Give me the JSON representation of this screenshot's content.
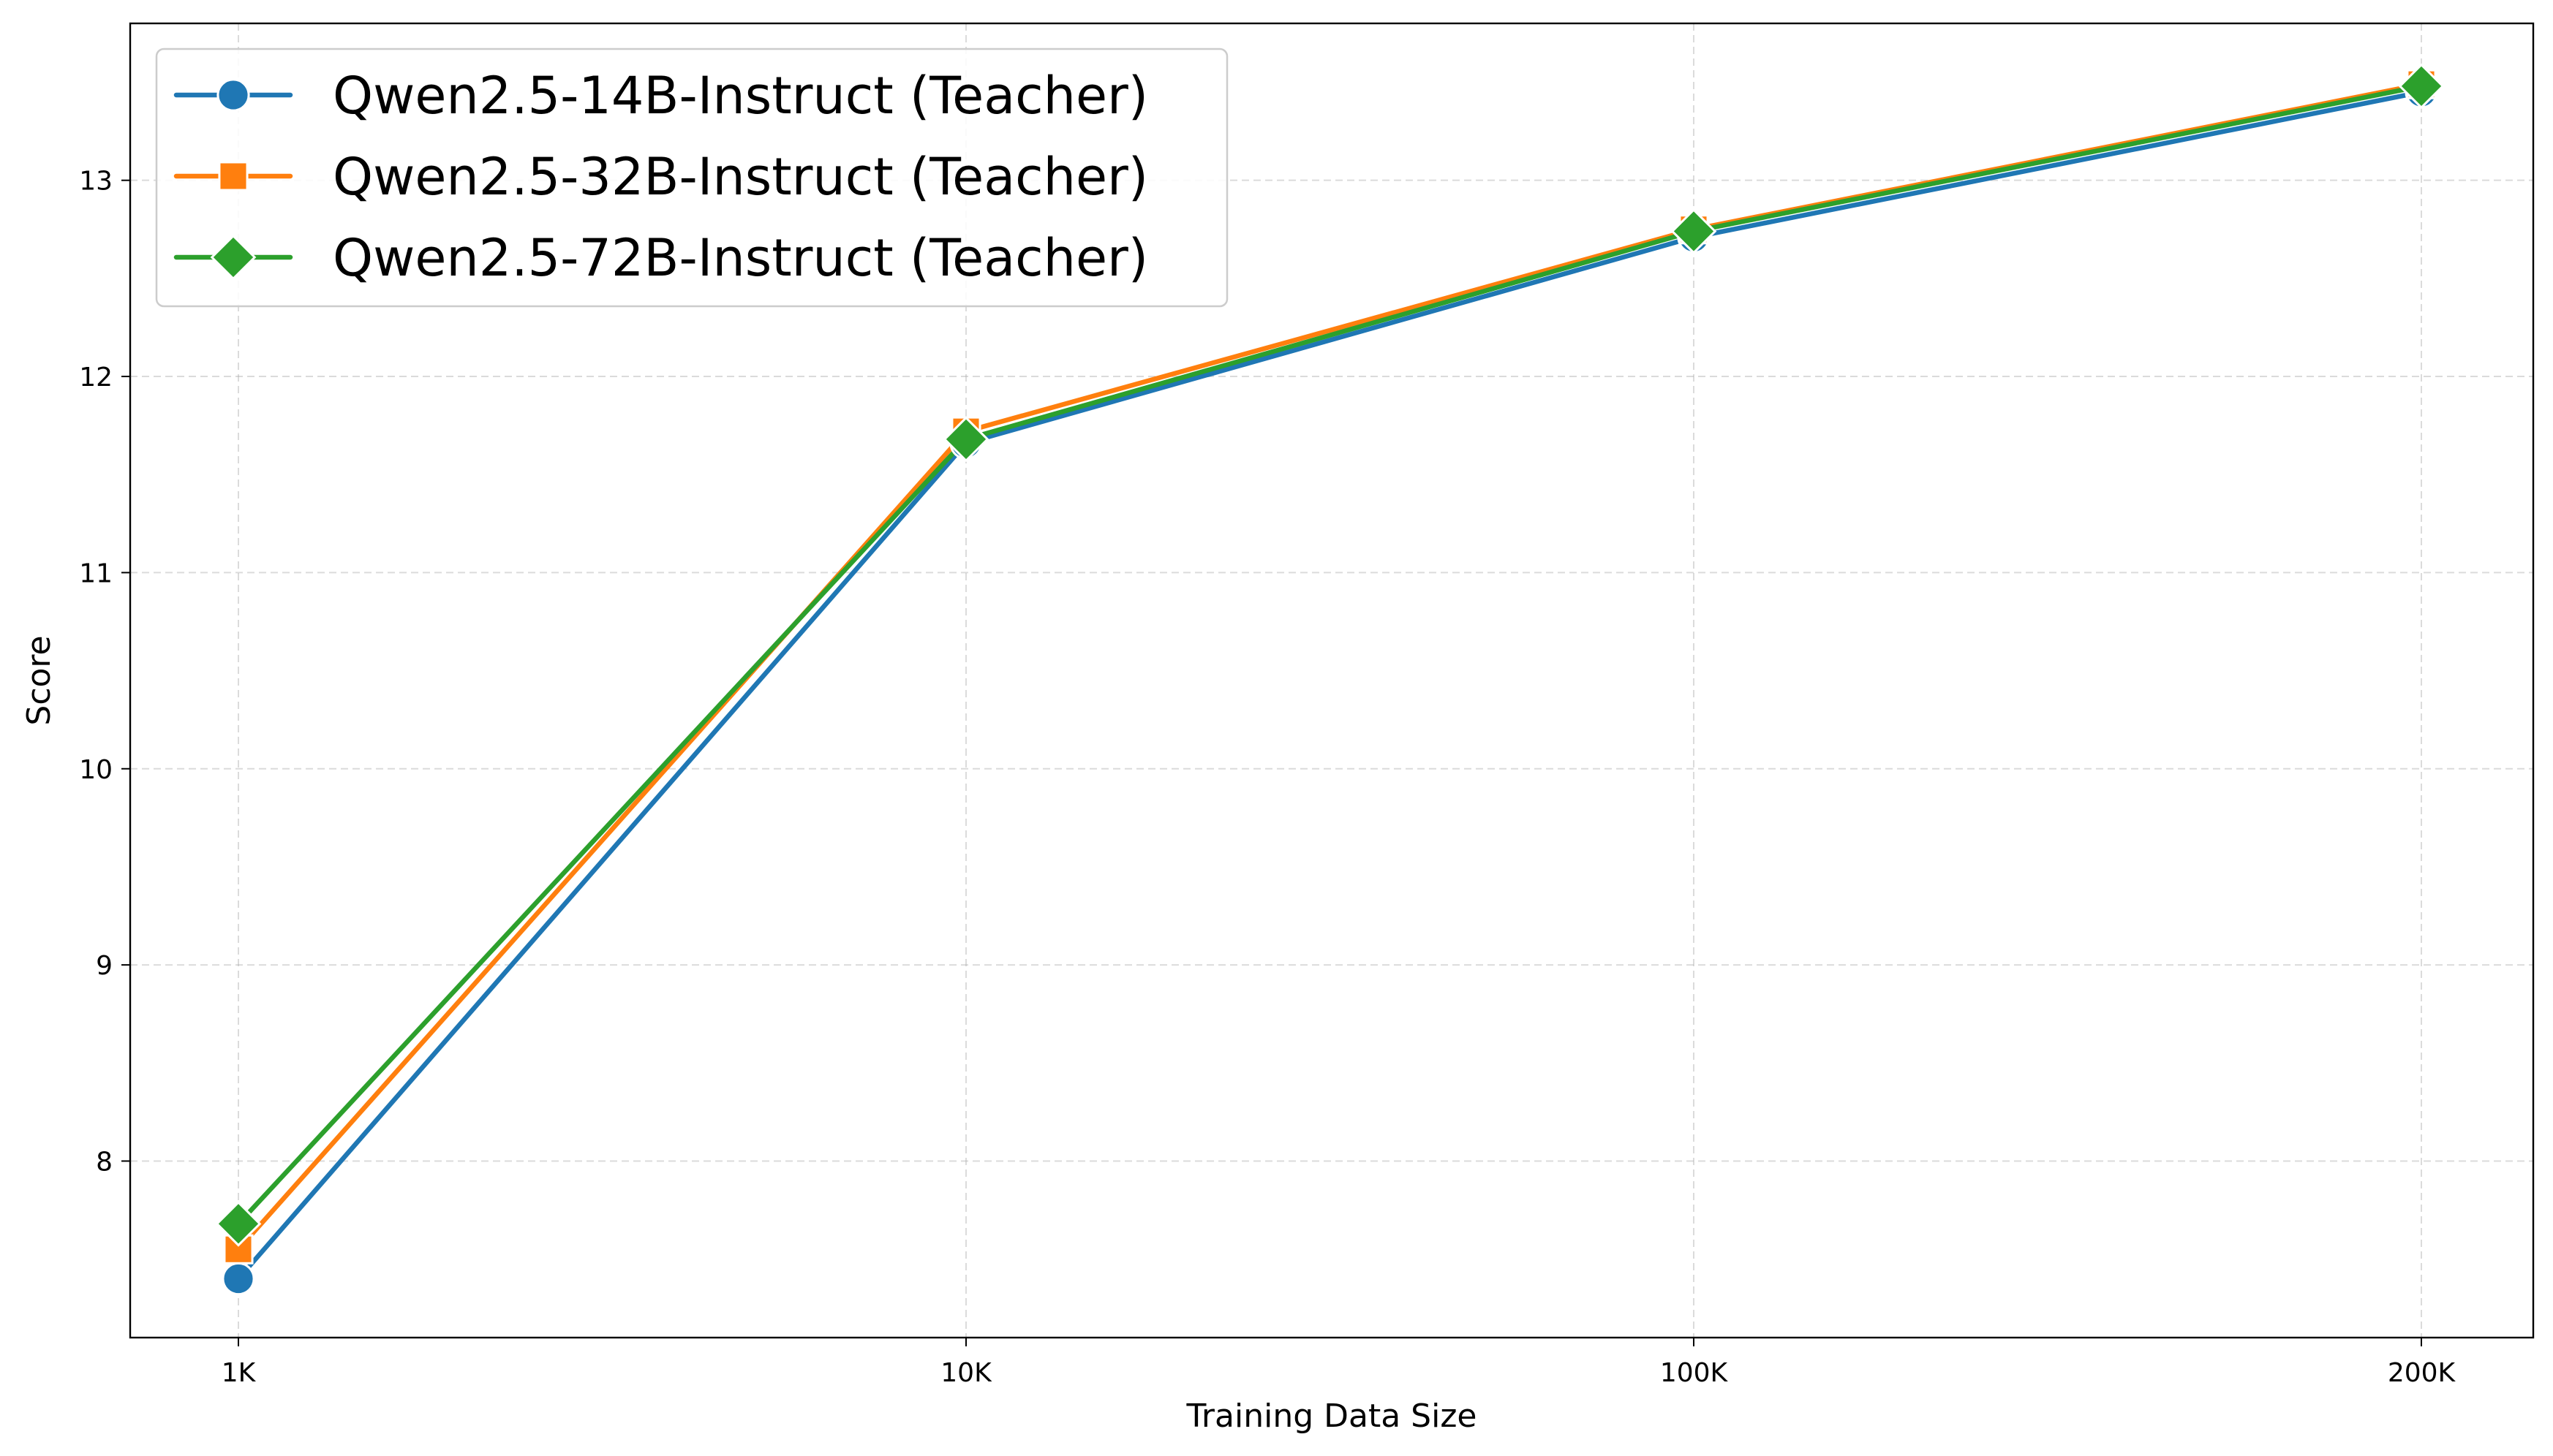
{
  "chart_data": {
    "type": "line",
    "title": "",
    "xlabel": "Training Data Size",
    "ylabel": "Score",
    "categories": [
      "1K",
      "10K",
      "100K",
      "200K"
    ],
    "ylim": [
      7.1,
      13.8
    ],
    "yticks": [
      8,
      9,
      10,
      11,
      12,
      13
    ],
    "grid": true,
    "legend_position": "top-left",
    "series": [
      {
        "name": "Qwen2.5-14B-Instruct (Teacher)",
        "color": "#1f77b4",
        "marker": "circle",
        "values": [
          7.4,
          11.66,
          12.71,
          13.45
        ]
      },
      {
        "name": "Qwen2.5-32B-Instruct (Teacher)",
        "color": "#ff7f0e",
        "marker": "square",
        "values": [
          7.55,
          11.72,
          12.75,
          13.49
        ]
      },
      {
        "name": "Qwen2.5-72B-Instruct (Teacher)",
        "color": "#2ca02c",
        "marker": "diamond",
        "values": [
          7.68,
          11.68,
          12.74,
          13.48
        ]
      }
    ]
  }
}
